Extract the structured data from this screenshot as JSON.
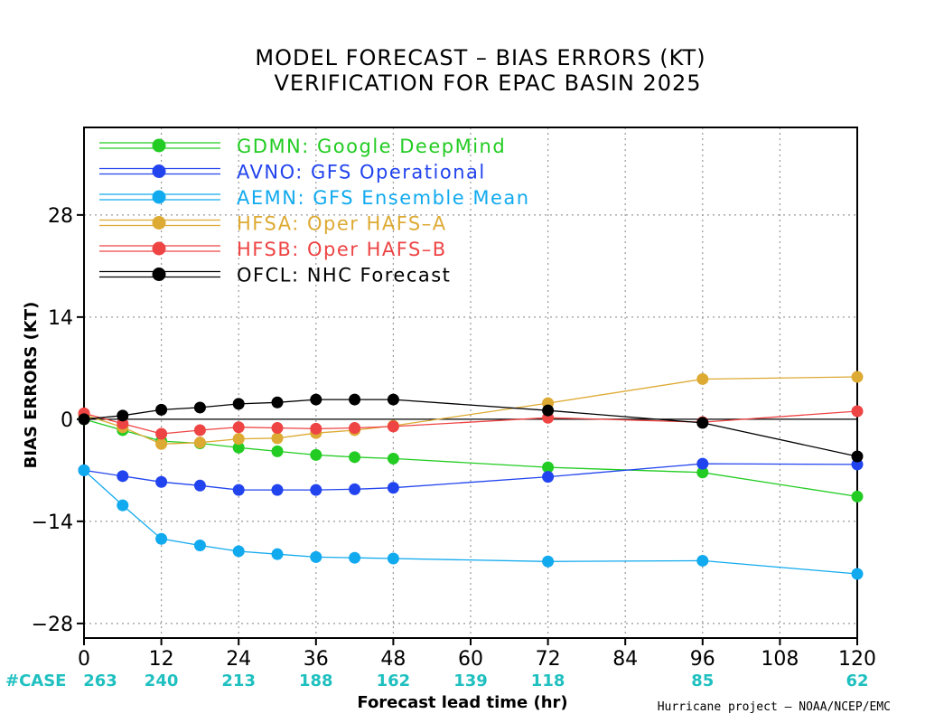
{
  "chart_data": {
    "type": "line",
    "title": "MODEL FORECAST – BIAS ERRORS (KT)",
    "subtitle": "VERIFICATION FOR EPAC BASIN 2025",
    "xlabel": "Forecast lead time (hr)",
    "ylabel": "BIAS ERRORS (KT)",
    "xlim": [
      0,
      120
    ],
    "ylim": [
      -30,
      40
    ],
    "xticks": [
      0,
      12,
      24,
      36,
      48,
      60,
      72,
      84,
      96,
      108,
      120
    ],
    "xtick_labels": [
      "0",
      "12",
      "24",
      "36",
      "48",
      "60",
      "72",
      "84",
      "96",
      "108",
      "120"
    ],
    "yticks": [
      -28,
      -14,
      0,
      14,
      28
    ],
    "ytick_labels": [
      "−28",
      "−14",
      "0",
      "14",
      "28"
    ],
    "grid": true,
    "legend_position": "top-left",
    "case_label": "#CASE",
    "cases": [
      {
        "x": 0,
        "label": "263"
      },
      {
        "x": 12,
        "label": "240"
      },
      {
        "x": 24,
        "label": "213"
      },
      {
        "x": 36,
        "label": "188"
      },
      {
        "x": 48,
        "label": "162"
      },
      {
        "x": 60,
        "label": "139"
      },
      {
        "x": 72,
        "label": "118"
      },
      {
        "x": 96,
        "label": "85"
      },
      {
        "x": 120,
        "label": "62"
      }
    ],
    "credit": "Hurricane project – NOAA/NCEP/EMC",
    "series": [
      {
        "name": "GDMN: Google DeepMind",
        "key": "gdmn",
        "color": "#22cc22",
        "x": [
          0,
          6,
          12,
          18,
          24,
          30,
          36,
          42,
          48,
          72,
          96,
          120
        ],
        "y": [
          0,
          -1.5,
          -3,
          -3.3,
          -3.9,
          -4.4,
          -4.9,
          -5.2,
          -5.4,
          -6.6,
          -7.3,
          -10.6
        ]
      },
      {
        "name": "AVNO: GFS Operational",
        "key": "avno",
        "color": "#2244ee",
        "x": [
          0,
          6,
          12,
          18,
          24,
          30,
          36,
          42,
          48,
          72,
          96,
          120
        ],
        "y": [
          -7,
          -7.8,
          -8.6,
          -9.1,
          -9.7,
          -9.7,
          -9.7,
          -9.6,
          -9.4,
          -7.9,
          -6.1,
          -6.2
        ]
      },
      {
        "name": "AEMN: GFS Ensemble Mean",
        "key": "aemn",
        "color": "#11aaee",
        "x": [
          0,
          6,
          12,
          18,
          24,
          30,
          36,
          42,
          48,
          72,
          96,
          120
        ],
        "y": [
          -7,
          -11.8,
          -16.4,
          -17.3,
          -18.1,
          -18.5,
          -18.9,
          -19,
          -19.1,
          -19.5,
          -19.4,
          -21.2
        ]
      },
      {
        "name": "HFSA: Oper HAFS–A",
        "key": "hfsa",
        "color": "#ddaa33",
        "x": [
          0,
          6,
          12,
          18,
          24,
          30,
          36,
          42,
          48,
          72,
          96,
          120
        ],
        "y": [
          0.6,
          -1.1,
          -3.4,
          -3.2,
          -2.7,
          -2.6,
          -1.9,
          -1.5,
          -0.9,
          2.2,
          5.5,
          5.8
        ]
      },
      {
        "name": "HFSB: Oper HAFS–B",
        "key": "hfsb",
        "color": "#ee4444",
        "x": [
          0,
          6,
          12,
          18,
          24,
          30,
          36,
          42,
          48,
          72,
          96,
          120
        ],
        "y": [
          0.8,
          -0.6,
          -2,
          -1.5,
          -1.1,
          -1.2,
          -1.3,
          -1.2,
          -1,
          0.2,
          -0.4,
          1.1
        ]
      },
      {
        "name": "OFCL: NHC Forecast",
        "key": "ofcl",
        "color": "#000000",
        "x": [
          0,
          6,
          12,
          18,
          24,
          30,
          36,
          42,
          48,
          72,
          96,
          120
        ],
        "y": [
          0,
          0.5,
          1.3,
          1.6,
          2.1,
          2.3,
          2.7,
          2.7,
          2.7,
          1.2,
          -0.5,
          -5.1
        ]
      }
    ]
  }
}
